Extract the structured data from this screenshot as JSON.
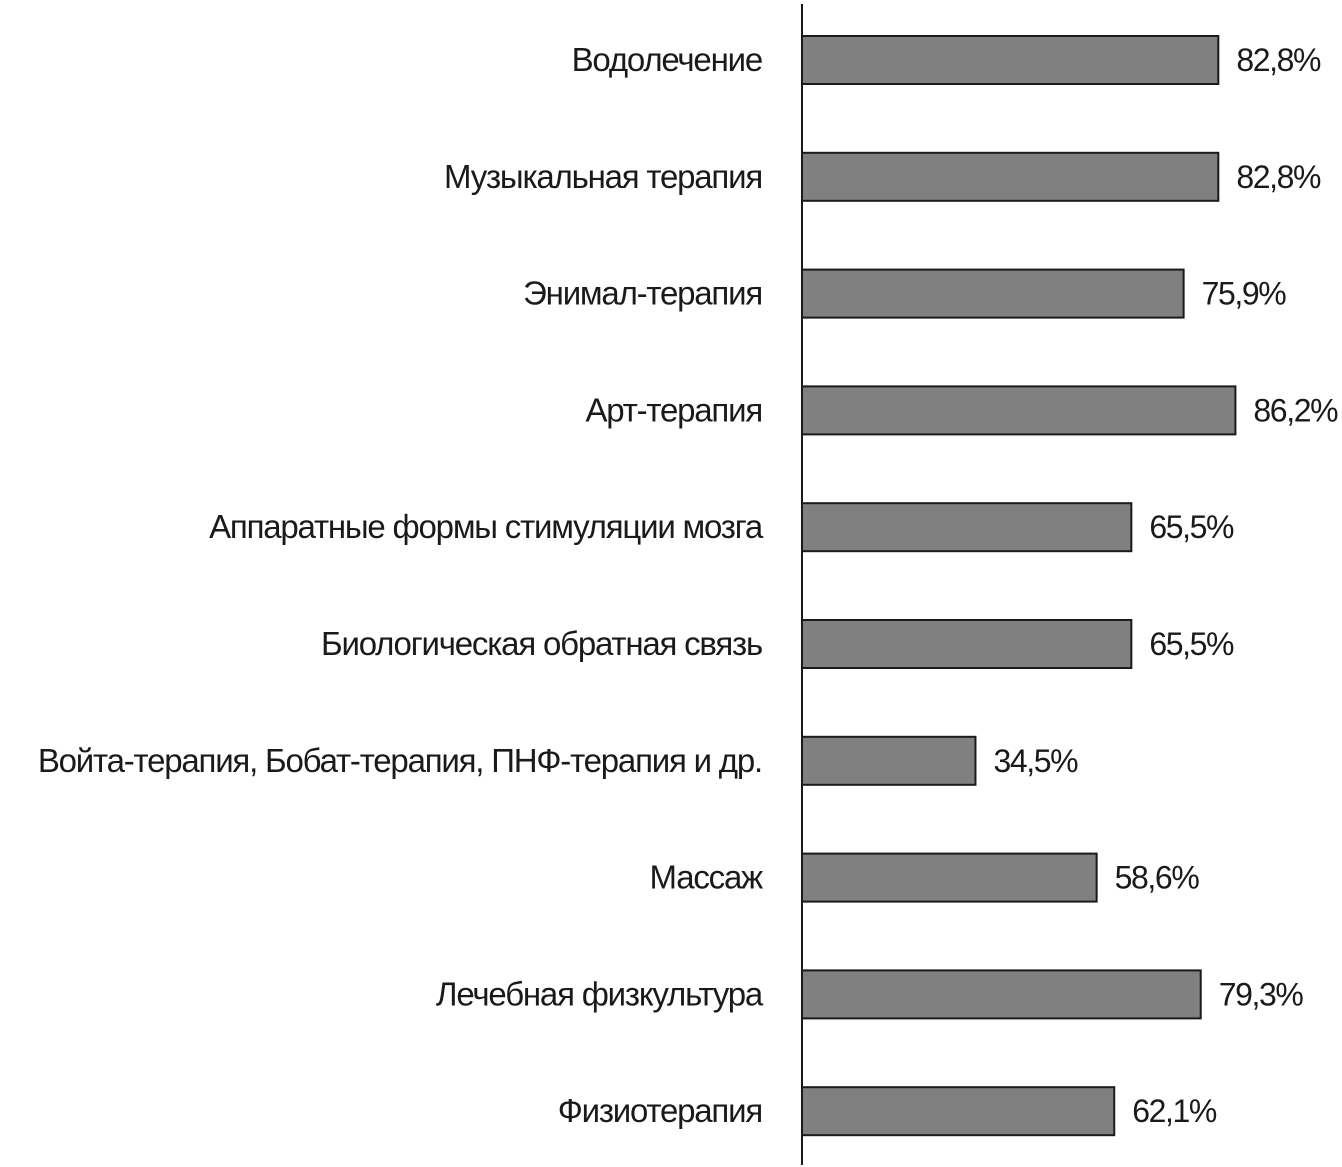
{
  "chart_data": {
    "type": "bar",
    "orientation": "horizontal",
    "title": "",
    "xlabel": "",
    "ylabel": "",
    "categories": [
      "Водолечение",
      "Музыкальная терапия",
      "Энимал-терапия",
      "Арт-терапия",
      "Аппаратные формы стимуляции мозга",
      "Биологическая обратная связь",
      "Войта-терапия, Бобат-терапия, ПНФ-терапия и др.",
      "Массаж",
      "Лечебная физкультура",
      "Физиотерапия"
    ],
    "values": [
      82.8,
      82.8,
      75.9,
      86.2,
      65.5,
      65.5,
      34.5,
      58.6,
      79.3,
      62.1
    ],
    "value_labels": [
      "82,8%",
      "82,8%",
      "75,9%",
      "86,2%",
      "65,5%",
      "65,5%",
      "34,5%",
      "58,6%",
      "79,3%",
      "62,1%"
    ],
    "unit": "%",
    "xlim": [
      0,
      100
    ],
    "grid": false,
    "legend": "none",
    "colors": {
      "bar_fill": "#808080",
      "bar_stroke": "#1a1a1a",
      "text": "#1a1a1a",
      "background": "#ffffff"
    }
  }
}
